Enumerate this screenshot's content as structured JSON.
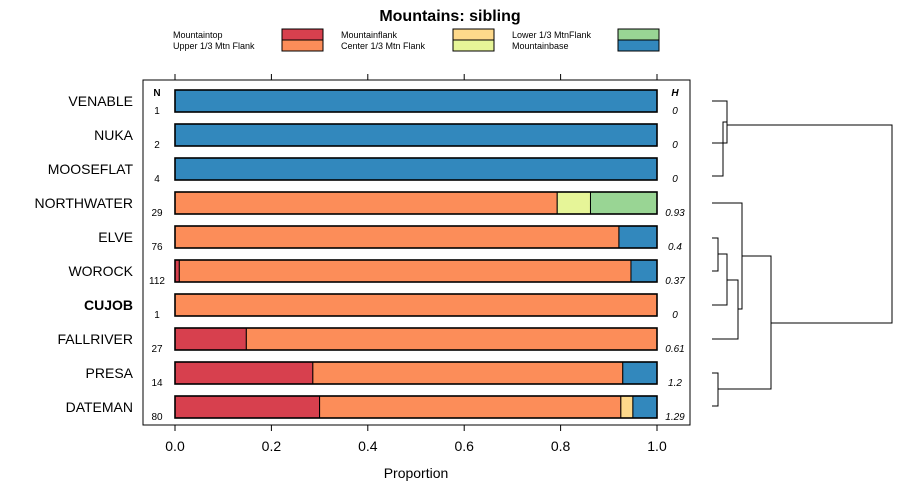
{
  "chart_data": {
    "type": "stacked-bar-horizontal",
    "title": "Mountains: sibling",
    "xlabel": "Proportion",
    "xlim": [
      0,
      1
    ],
    "xticks": [
      "0.0",
      "0.2",
      "0.4",
      "0.6",
      "0.8",
      "1.0"
    ],
    "n_header": "N",
    "h_header": "H",
    "categories_legend": [
      {
        "name": "Mountaintop",
        "color": "#d7404e"
      },
      {
        "name": "Upper 1/3 Mtn Flank",
        "color": "#fc8d59"
      },
      {
        "name": "Mountainflank",
        "color": "#fed98b"
      },
      {
        "name": "Center 1/3 Mtn Flank",
        "color": "#e6f598"
      },
      {
        "name": "Lower 1/3 MtnFlank",
        "color": "#99d594"
      },
      {
        "name": "Mountainbase",
        "color": "#3288bd"
      }
    ],
    "rows": [
      {
        "label": "VENABLE",
        "n": "1",
        "h": "0",
        "bold": false,
        "values": [
          0,
          0,
          0,
          0,
          0,
          1.0
        ]
      },
      {
        "label": "NUKA",
        "n": "2",
        "h": "0",
        "bold": false,
        "values": [
          0,
          0,
          0,
          0,
          0,
          1.0
        ]
      },
      {
        "label": "MOOSEFLAT",
        "n": "4",
        "h": "0",
        "bold": false,
        "values": [
          0,
          0,
          0,
          0,
          0,
          1.0
        ]
      },
      {
        "label": "NORTHWATER",
        "n": "29",
        "h": "0.93",
        "bold": false,
        "values": [
          0,
          0.793,
          0,
          0.069,
          0.138,
          0
        ]
      },
      {
        "label": "ELVE",
        "n": "76",
        "h": "0.4",
        "bold": false,
        "values": [
          0,
          0.921,
          0,
          0,
          0,
          0.079
        ]
      },
      {
        "label": "WOROCK",
        "n": "112",
        "h": "0.37",
        "bold": false,
        "values": [
          0.009,
          0.937,
          0,
          0,
          0,
          0.054
        ]
      },
      {
        "label": "CUJOB",
        "n": "1",
        "h": "0",
        "bold": true,
        "values": [
          0,
          1.0,
          0,
          0,
          0,
          0
        ]
      },
      {
        "label": "FALLRIVER",
        "n": "27",
        "h": "0.61",
        "bold": false,
        "values": [
          0.148,
          0.852,
          0,
          0,
          0,
          0
        ]
      },
      {
        "label": "PRESA",
        "n": "14",
        "h": "1.2",
        "bold": false,
        "values": [
          0.286,
          0.643,
          0,
          0,
          0,
          0.071
        ]
      },
      {
        "label": "DATEMAN",
        "n": "80",
        "h": "1.29",
        "bold": false,
        "values": [
          0.3,
          0.625,
          0.025,
          0,
          0,
          0.05
        ]
      }
    ]
  }
}
